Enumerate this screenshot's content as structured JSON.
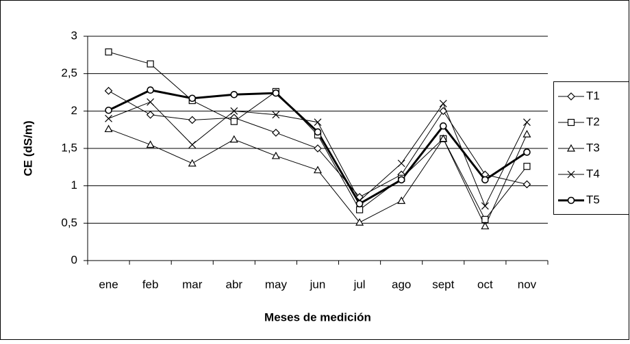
{
  "chart_data": {
    "type": "line",
    "x_label": "Meses de medición",
    "y_label": "CE (dS/m)",
    "categories": [
      "ene",
      "feb",
      "mar",
      "abr",
      "may",
      "jun",
      "jul",
      "ago",
      "sept",
      "oct",
      "nov"
    ],
    "ylim": [
      0,
      3
    ],
    "yticks": [
      0,
      {
        "value": 0.5,
        "label": "0,5"
      },
      1,
      {
        "value": 1.5,
        "label": "1,5"
      },
      2,
      {
        "value": 2.5,
        "label": "2,5"
      },
      3
    ],
    "grid": true,
    "legend": "right",
    "series": [
      {
        "name": "T1",
        "color": "#000000",
        "marker": "diamond",
        "linewidth": 1,
        "values": [
          2.27,
          1.95,
          1.88,
          1.91,
          1.71,
          1.5,
          0.85,
          1.15,
          2.0,
          1.15,
          1.02
        ]
      },
      {
        "name": "T2",
        "color": "#000000",
        "marker": "square",
        "linewidth": 1,
        "values": [
          2.79,
          2.63,
          2.14,
          1.86,
          2.26,
          1.68,
          0.68,
          1.1,
          1.63,
          0.55,
          1.26
        ]
      },
      {
        "name": "T3",
        "color": "#000000",
        "marker": "triangle",
        "linewidth": 1,
        "values": [
          1.76,
          1.55,
          1.3,
          1.62,
          1.4,
          1.21,
          0.51,
          0.8,
          1.63,
          0.46,
          1.69
        ]
      },
      {
        "name": "T4",
        "color": "#000000",
        "marker": "x",
        "linewidth": 1,
        "values": [
          1.9,
          2.12,
          1.55,
          2.0,
          1.95,
          1.85,
          0.8,
          1.3,
          2.1,
          0.73,
          1.85
        ]
      },
      {
        "name": "T5",
        "color": "#000000",
        "marker": "circle",
        "linewidth": 3,
        "values": [
          2.01,
          2.28,
          2.17,
          2.22,
          2.24,
          1.72,
          0.76,
          1.08,
          1.8,
          1.08,
          1.45
        ]
      }
    ]
  }
}
